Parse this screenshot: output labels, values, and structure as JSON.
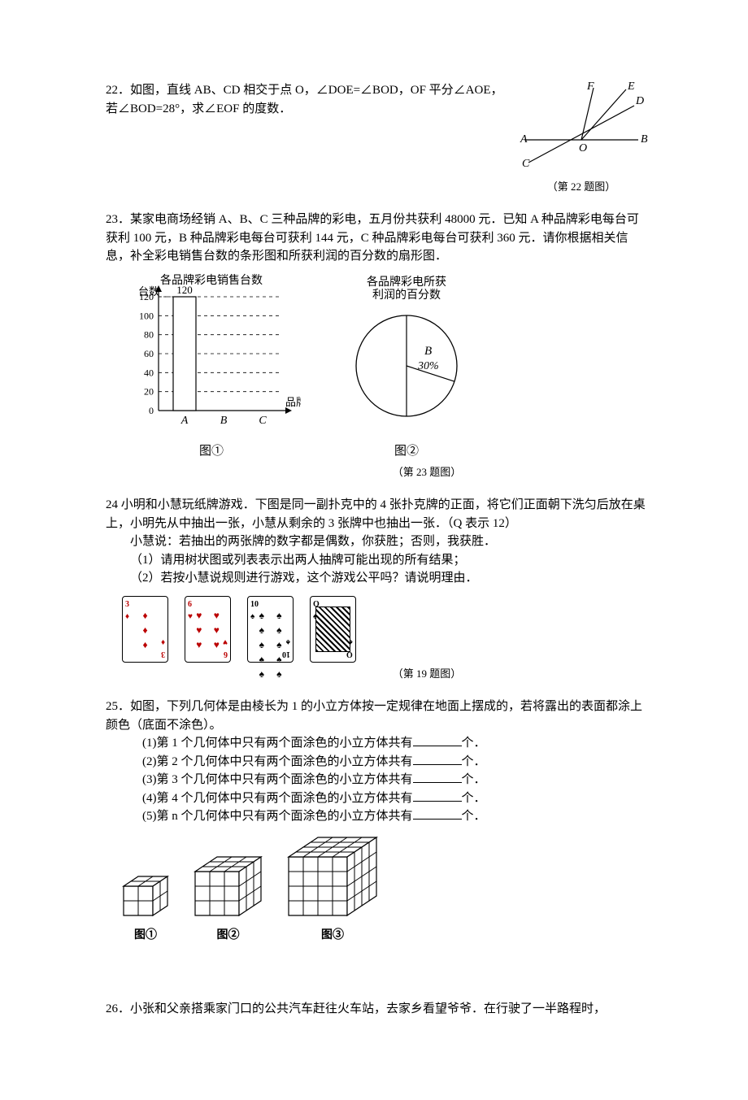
{
  "q22": {
    "num": "22．",
    "text": "如图，直线 AB、CD 相交于点 O，∠DOE=∠BOD，OF 平分∠AOE，若∠BOD=28°，求∠EOF 的度数．",
    "caption": "（第 22 题图）",
    "labels": {
      "A": "A",
      "B": "B",
      "C": "C",
      "D": "D",
      "E": "E",
      "F": "F",
      "O": "O"
    }
  },
  "q23": {
    "num": "23．",
    "text": "某家电商场经销 A、B、C 三种品牌的彩电，五月份共获利 48000 元．已知 A 种品牌彩电每台可获利 100 元，B 种品牌彩电每台可获利 144 元，C 种品牌彩电每台可获利 360 元．请你根据相关信息，补全彩电销售台数的条形图和所获利润的百分数的扇形图．",
    "bar": {
      "title": "各品牌彩电销售台数",
      "ylabel": "台数",
      "xlabel": "品牌",
      "yticks": [
        0,
        20,
        40,
        60,
        80,
        100,
        120
      ],
      "categories": [
        "A",
        "B",
        "C"
      ],
      "values": [
        120,
        null,
        null
      ],
      "bar_color": "#ffffff",
      "border_color": "#000000",
      "grid_style": "dashed",
      "sub": "图①"
    },
    "pie": {
      "title": "各品牌彩电所获利润的百分数",
      "slices": [
        {
          "label": "B",
          "pct_label": "30%",
          "value": 30,
          "color": "#ffffff"
        },
        {
          "label": "",
          "pct_label": "",
          "value": 70,
          "color": "#ffffff"
        }
      ],
      "divider_angles_deg": [
        0,
        108,
        180
      ],
      "border_color": "#000000",
      "sub": "图②"
    },
    "caption": "（第 23 题图）"
  },
  "q24": {
    "num": "24 ",
    "intro": "小明和小慧玩纸牌游戏．下图是同一副扑克中的 4 张扑克牌的正面，将它们正面朝下洗匀后放在桌上，小明先从中抽出一张，小慧从剩余的 3 张牌中也抽出一张．（Q 表示 12）",
    "rule": "小慧说：若抽出的两张牌的数字都是偶数，你获胜；否则，我获胜．",
    "s1": "（1）请用树状图或列表表示出两人抽牌可能出现的所有结果；",
    "s2": "（2）若按小慧说规则进行游戏，这个游戏公平吗？请说明理由．",
    "cards": [
      {
        "rank": "3",
        "suit": "♦",
        "color": "red",
        "pips": 3
      },
      {
        "rank": "6",
        "suit": "♥",
        "color": "red",
        "pips": 6
      },
      {
        "rank": "10",
        "suit": "♠",
        "color": "blk",
        "pips": 10
      },
      {
        "rank": "Q",
        "suit": "♠",
        "color": "blk",
        "pips": 0,
        "face": true
      }
    ],
    "caption": "（第 19 题图）"
  },
  "q25": {
    "num": "25．",
    "intro": "如图，下列几何体是由棱长为 1 的小立方体按一定规律在地面上摆成的，若将露出的表面都涂上颜色（底面不涂色）。",
    "items": [
      "第 1 个几何体中只有两个面涂色的小立方体共有",
      "第 2 个几何体中只有两个面涂色的小立方体共有",
      "第 3 个几何体中只有两个面涂色的小立方体共有",
      "第 4 个几何体中只有两个面涂色的小立方体共有",
      "第 n 个几何体中只有两个面涂色的小立方体共有"
    ],
    "unit": "个．",
    "cubes": [
      {
        "n": 2,
        "label": "图①"
      },
      {
        "n": 3,
        "label": "图②"
      },
      {
        "n": 4,
        "label": "图③"
      }
    ]
  },
  "q26": {
    "num": "26．",
    "text": "小张和父亲搭乘家门口的公共汽车赶往火车站，去家乡看望爷爷．在行驶了一半路程时，"
  }
}
